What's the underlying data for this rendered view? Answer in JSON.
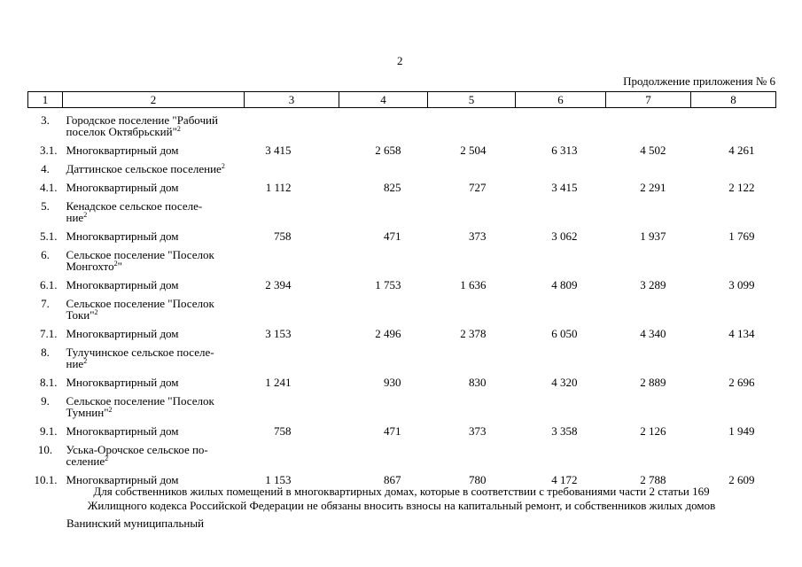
{
  "page_number": "2",
  "subtitle": "Продолжение приложения № 6",
  "table": {
    "header": [
      "1",
      "2",
      "3",
      "4",
      "5",
      "6",
      "7",
      "8"
    ],
    "groups": [
      {
        "num": "3.",
        "title": [
          "Городское поселение \"Рабочий",
          "поселок Октябрьский\""
        ],
        "note": "2",
        "item": {
          "num": "3.1.",
          "name": "Многоквартирный дом",
          "values": [
            "3 415",
            "2 658",
            "2 504",
            "6 313",
            "4 502",
            "4 261"
          ]
        }
      },
      {
        "num": "4.",
        "title": [
          "Даттинское сельское поселение"
        ],
        "note": "2",
        "item": {
          "num": "4.1.",
          "name": "Многоквартирный дом",
          "values": [
            "1 112",
            "825",
            "727",
            "3 415",
            "2 291",
            "2 122"
          ]
        }
      },
      {
        "num": "5.",
        "title": [
          "Кенадское сельское поселе-",
          "ние"
        ],
        "note": "2",
        "item": {
          "num": "5.1.",
          "name": "Многоквартирный дом",
          "values": [
            "758",
            "471",
            "373",
            "3 062",
            "1 937",
            "1 769"
          ]
        }
      },
      {
        "num": "6.",
        "title": [
          "Сельское поселение \"Поселок",
          "Монгохто"
        ],
        "note": "2",
        "note_after": "\"",
        "item": {
          "num": "6.1.",
          "name": "Многоквартирный дом",
          "values": [
            "2 394",
            "1 753",
            "1 636",
            "4 809",
            "3 289",
            "3 099"
          ]
        }
      },
      {
        "num": "7.",
        "title": [
          "Сельское поселение \"Поселок",
          "Токи\""
        ],
        "note": "2",
        "item": {
          "num": "7.1.",
          "name": "Многоквартирный дом",
          "values": [
            "3 153",
            "2 496",
            "2 378",
            "6 050",
            "4 340",
            "4 134"
          ]
        }
      },
      {
        "num": "8.",
        "title": [
          "Тулучинское сельское поселе-",
          "ние"
        ],
        "note": "2",
        "item": {
          "num": "8.1.",
          "name": "Многоквартирный дом",
          "values": [
            "1 241",
            "930",
            "830",
            "4 320",
            "2 889",
            "2 696"
          ]
        }
      },
      {
        "num": "9.",
        "title": [
          "Сельское поселение \"Поселок",
          "Тумнин\""
        ],
        "note": "2",
        "item": {
          "num": "9.1.",
          "name": "Многоквартирный дом",
          "values": [
            "758",
            "471",
            "373",
            "3 358",
            "2 126",
            "1 949"
          ]
        }
      },
      {
        "num": "10.",
        "title": [
          "Уська-Орочское сельское по-",
          "селение"
        ],
        "note": "2",
        "item": {
          "num": "10.1.",
          "name": "Многоквартирный дом",
          "values": [
            "1 153",
            "867",
            "780",
            "4 172",
            "2 788",
            "2 609"
          ]
        }
      }
    ]
  },
  "footer": {
    "lines": [
      "Для собственников жилых помещений в многоквартирных домах, которые в соответствии с требованиями части 2 статьи 169",
      "Жилищного кодекса Российской Федерации не обязаны вносить взносы на капитальный ремонт, и собственников жилых домов"
    ],
    "next": "Ванинский муниципальный"
  }
}
